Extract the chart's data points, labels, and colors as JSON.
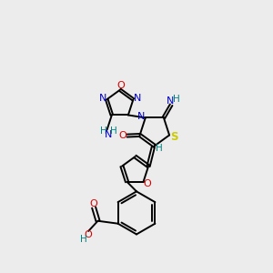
{
  "background_color": "#ececec",
  "figure_size": [
    3.0,
    3.0
  ],
  "dpi": 100,
  "atom_colors": {
    "C": "#000000",
    "N": "#0000cc",
    "O": "#dd0000",
    "S": "#cccc00",
    "H": "#008080"
  },
  "bond_color": "#000000",
  "bond_lw": 1.4,
  "dbl_off": 0.055
}
